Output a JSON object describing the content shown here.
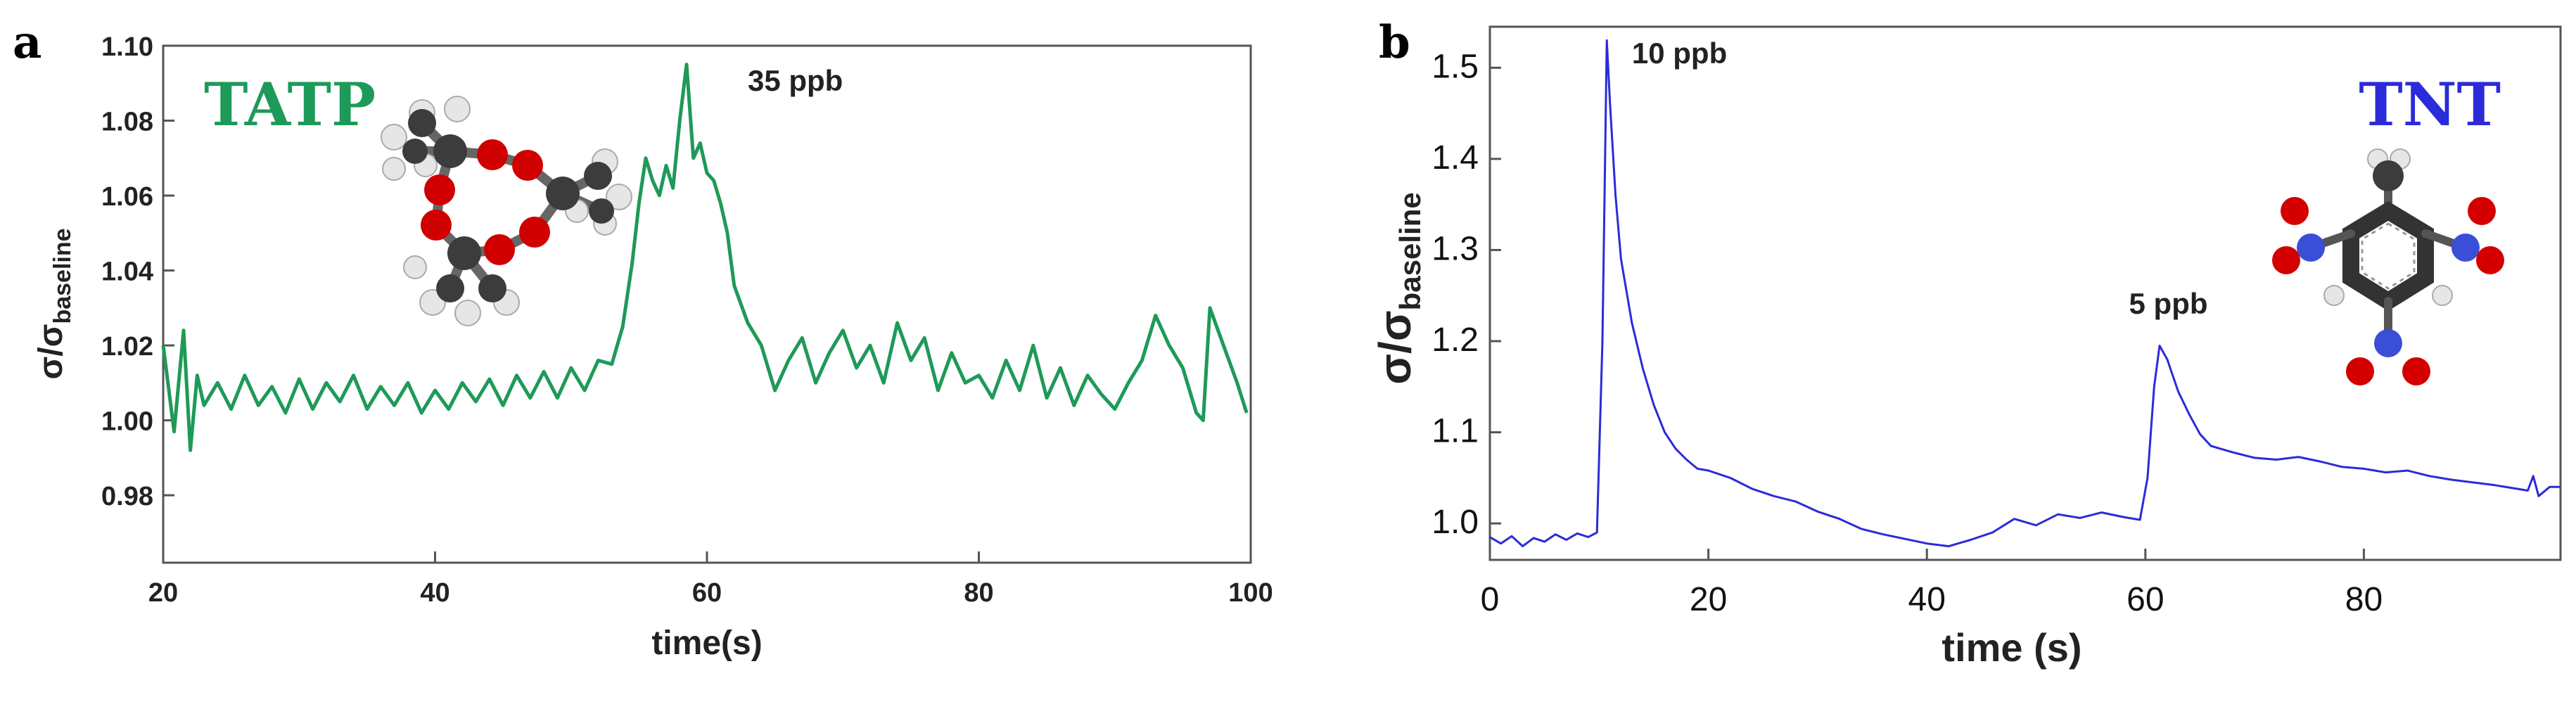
{
  "colors": {
    "tatp": "#1e9a58",
    "tnt": "#2b2bd9",
    "frame": "#555555",
    "atom_c": "#444444",
    "atom_o": "#d40000",
    "atom_h": "#e0e0e0",
    "atom_n": "#3a4fd6"
  },
  "chart_data": [
    {
      "panel": "a",
      "type": "line",
      "xlabel": "time(s)",
      "ylabel_main": "σ/σ",
      "ylabel_sub": "baseline",
      "xlim": [
        20,
        100
      ],
      "ylim": [
        0.962,
        1.1
      ],
      "xticks": [
        20,
        40,
        60,
        80,
        100
      ],
      "yticks": [
        0.98,
        1.0,
        1.02,
        1.04,
        1.06,
        1.08,
        1.1
      ],
      "xtick_labels": [
        "20",
        "40",
        "60",
        "80",
        "100"
      ],
      "ytick_labels": [
        "0.98",
        "1.00",
        "1.02",
        "1.04",
        "1.06",
        "1.08",
        "1.10"
      ],
      "grid": false,
      "compound_label": "TATP",
      "annotations": [
        {
          "text": "35 ppb",
          "x": 63,
          "y": 1.088
        }
      ],
      "series": [
        {
          "x": [
            20,
            20.8,
            21.5,
            22.0,
            22.5,
            23,
            24,
            25,
            26,
            27,
            28,
            29,
            30,
            31,
            32,
            33,
            34,
            35,
            36,
            37,
            38,
            39,
            40,
            41,
            42,
            43,
            44,
            45,
            46,
            47,
            48,
            49,
            50,
            51,
            52,
            53,
            53.8,
            54.5,
            55,
            55.5,
            56,
            56.5,
            57,
            57.5,
            58,
            58.5,
            59,
            59.5,
            60,
            60.5,
            61,
            61.5,
            62,
            63,
            64,
            65,
            66,
            67,
            68,
            69,
            70,
            71,
            72,
            73,
            74,
            75,
            76,
            77,
            78,
            79,
            80,
            81,
            82,
            83,
            84,
            85,
            86,
            87,
            88,
            89,
            90,
            91,
            92,
            93,
            94,
            95,
            96,
            96.5,
            97,
            98,
            99,
            99.7
          ],
          "y": [
            1.02,
            0.997,
            1.024,
            0.992,
            1.012,
            1.004,
            1.01,
            1.003,
            1.012,
            1.004,
            1.009,
            1.002,
            1.011,
            1.003,
            1.01,
            1.005,
            1.012,
            1.003,
            1.009,
            1.004,
            1.01,
            1.002,
            1.008,
            1.003,
            1.01,
            1.005,
            1.011,
            1.004,
            1.012,
            1.006,
            1.013,
            1.006,
            1.014,
            1.008,
            1.016,
            1.015,
            1.025,
            1.042,
            1.058,
            1.07,
            1.064,
            1.06,
            1.068,
            1.062,
            1.08,
            1.095,
            1.07,
            1.074,
            1.066,
            1.064,
            1.058,
            1.05,
            1.036,
            1.026,
            1.02,
            1.008,
            1.016,
            1.022,
            1.01,
            1.018,
            1.024,
            1.014,
            1.02,
            1.01,
            1.026,
            1.016,
            1.022,
            1.008,
            1.018,
            1.01,
            1.012,
            1.006,
            1.016,
            1.008,
            1.02,
            1.006,
            1.014,
            1.004,
            1.012,
            1.007,
            1.003,
            1.01,
            1.016,
            1.028,
            1.02,
            1.014,
            1.002,
            1.0,
            1.03,
            1.02,
            1.01,
            1.002
          ]
        }
      ]
    },
    {
      "panel": "b",
      "type": "line",
      "xlabel": "time (s)",
      "ylabel_main": "σ/σ",
      "ylabel_sub": "baseline",
      "xlim": [
        0,
        98
      ],
      "ylim": [
        0.96,
        1.545
      ],
      "xticks": [
        0,
        20,
        40,
        60,
        80
      ],
      "yticks": [
        1.0,
        1.1,
        1.2,
        1.3,
        1.4,
        1.5
      ],
      "xtick_labels": [
        "0",
        "20",
        "40",
        "60",
        "80"
      ],
      "ytick_labels": [
        "1.0",
        "1.1",
        "1.2",
        "1.3",
        "1.4",
        "1.5"
      ],
      "grid": false,
      "compound_label": "TNT",
      "annotations": [
        {
          "text": "10 ppb",
          "x": 13,
          "y": 1.505
        },
        {
          "text": "5 ppb",
          "x": 58.5,
          "y": 1.23
        }
      ],
      "series": [
        {
          "x": [
            0,
            1,
            2,
            3,
            4,
            5,
            6,
            7,
            8,
            9,
            9.8,
            10.3,
            10.7,
            11.0,
            11.5,
            12,
            13,
            14,
            15,
            16,
            17,
            18,
            19,
            20,
            22,
            24,
            26,
            28,
            30,
            32,
            34,
            36,
            38,
            40,
            42,
            44,
            46,
            48,
            50,
            52,
            54,
            56,
            58,
            59.5,
            60.2,
            60.8,
            61.3,
            62,
            63,
            64,
            65,
            66,
            68,
            70,
            72,
            74,
            76,
            78,
            80,
            82,
            84,
            86,
            88,
            90,
            92,
            94,
            95,
            95.5,
            96,
            97,
            98
          ],
          "y": [
            0.985,
            0.978,
            0.986,
            0.975,
            0.984,
            0.98,
            0.988,
            0.982,
            0.989,
            0.985,
            0.99,
            1.2,
            1.53,
            1.46,
            1.36,
            1.29,
            1.22,
            1.17,
            1.13,
            1.1,
            1.082,
            1.07,
            1.06,
            1.058,
            1.05,
            1.038,
            1.03,
            1.024,
            1.013,
            1.005,
            0.994,
            0.988,
            0.983,
            0.978,
            0.975,
            0.982,
            0.99,
            1.005,
            0.998,
            1.01,
            1.006,
            1.012,
            1.007,
            1.004,
            1.05,
            1.15,
            1.195,
            1.18,
            1.145,
            1.12,
            1.098,
            1.085,
            1.078,
            1.072,
            1.07,
            1.073,
            1.068,
            1.062,
            1.06,
            1.056,
            1.058,
            1.052,
            1.048,
            1.045,
            1.042,
            1.038,
            1.036,
            1.052,
            1.03,
            1.04,
            1.04
          ]
        }
      ]
    }
  ]
}
